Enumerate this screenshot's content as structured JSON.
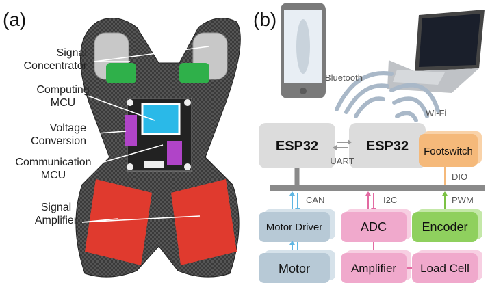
{
  "panel_a": {
    "label": "(a)",
    "callouts": [
      {
        "line1": "Signal",
        "line2": "Concentrator"
      },
      {
        "line1": "Computing",
        "line2": "MCU"
      },
      {
        "line1": "Voltage",
        "line2": "Conversion"
      },
      {
        "line1": "Communication",
        "line2": "MCU"
      },
      {
        "line1": "Signal",
        "line2": "Amplifier"
      }
    ]
  },
  "panel_b": {
    "label": "(b)",
    "wireless": {
      "bluetooth": "Bluetooth",
      "wifi": "Wi-Fi"
    },
    "blocks": {
      "esp32_left": "ESP32",
      "esp32_right": "ESP32",
      "footswitch": "Footswitch",
      "motor_driver": "Motor Driver",
      "adc": "ADC",
      "encoder": "Encoder",
      "motor": "Motor",
      "amplifier": "Amplifier",
      "load_cell": "Load Cell"
    },
    "links": {
      "uart": "UART",
      "can": "CAN",
      "i2c": "I2C",
      "dio": "DIO",
      "pwm": "PWM"
    },
    "colors": {
      "esp32": "#dcdcdc",
      "footswitch": "#f5b97a",
      "motor": "#b7c9d6",
      "adc": "#f0a9cc",
      "encoder": "#8fd05e",
      "bus": "#8a8a8a",
      "can_arrow": "#5fb6e3",
      "i2c_arrow": "#e36aa2",
      "pwm_arrow": "#7cc244"
    }
  }
}
